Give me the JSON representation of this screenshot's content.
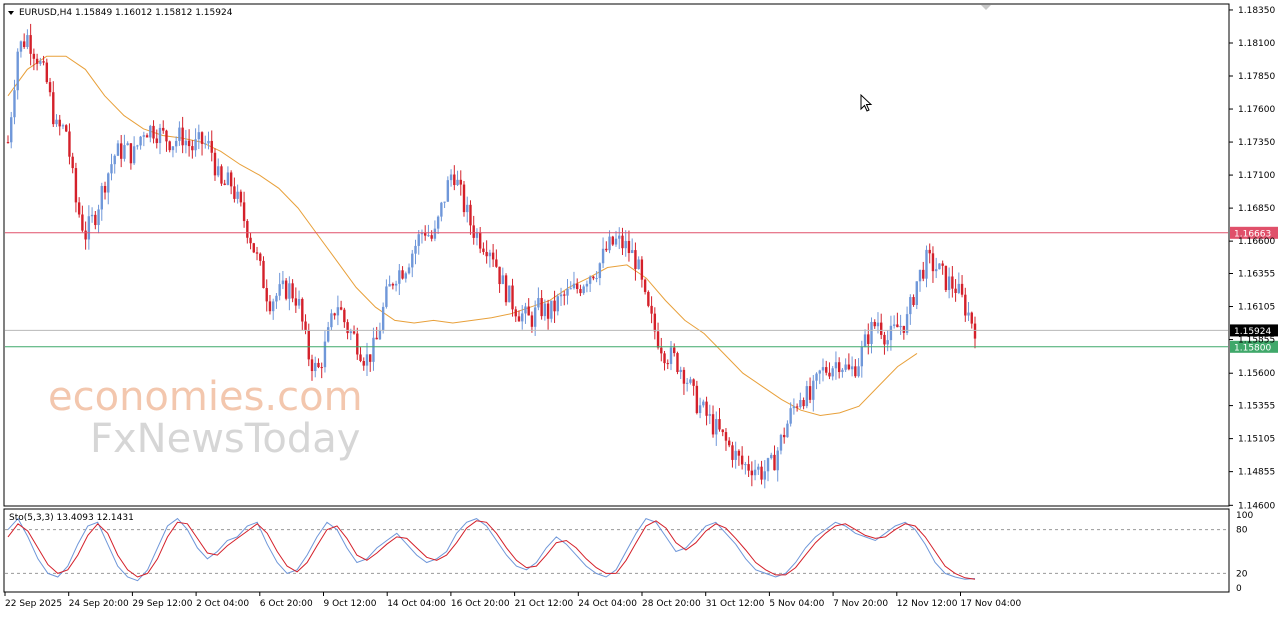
{
  "header": {
    "symbol_line": "EURUSD,H4  1.15849 1.16012 1.15812 1.15924",
    "stoch_line": "Sto(5,3,3) 13.4093 12.1431"
  },
  "watermark": {
    "line1": "economies.com",
    "line2": "FxNewsToday"
  },
  "colors": {
    "bull": "#6f97d9",
    "bear": "#d4202a",
    "ma": "#e8a03a",
    "resistance": "#e0506a",
    "support": "#3fa86a",
    "stoch_main": "#6f97d9",
    "stoch_signal": "#d4202a",
    "current_tag": "#000000"
  },
  "chart_data": [
    {
      "type": "candlestick",
      "symbol": "EURUSD",
      "timeframe": "H4",
      "ylim": [
        1.1461,
        1.1838
      ],
      "y_ticks": [
        "1.18350",
        "1.18100",
        "1.17850",
        "1.17600",
        "1.17350",
        "1.17100",
        "1.16850",
        "1.16600",
        "1.16355",
        "1.16105",
        "1.15855",
        "1.15600",
        "1.15355",
        "1.15105",
        "1.14855",
        "1.14600"
      ],
      "x_tick_labels": [
        "22 Sep 2025",
        "24 Sep 20:00",
        "29 Sep 12:00",
        "2 Oct 04:00",
        "6 Oct 20:00",
        "9 Oct 12:00",
        "14 Oct 04:00",
        "16 Oct 20:00",
        "21 Oct 12:00",
        "24 Oct 04:00",
        "28 Oct 20:00",
        "31 Oct 12:00",
        "5 Nov 04:00",
        "7 Nov 20:00",
        "12 Nov 12:00",
        "17 Nov 04:00"
      ],
      "close_path": [
        [
          0,
          1.1735
        ],
        [
          5,
          1.1805
        ],
        [
          10,
          1.1815
        ],
        [
          15,
          1.18
        ],
        [
          20,
          1.178
        ],
        [
          25,
          1.1745
        ],
        [
          30,
          1.1745
        ],
        [
          35,
          1.169
        ],
        [
          40,
          1.1665
        ],
        [
          45,
          1.168
        ],
        [
          50,
          1.1705
        ],
        [
          55,
          1.1725
        ],
        [
          60,
          1.173
        ],
        [
          65,
          1.1725
        ],
        [
          70,
          1.1745
        ],
        [
          75,
          1.1745
        ],
        [
          80,
          1.174
        ],
        [
          85,
          1.1735
        ],
        [
          90,
          1.174
        ],
        [
          95,
          1.173
        ],
        [
          100,
          1.1735
        ],
        [
          105,
          1.173
        ],
        [
          110,
          1.17
        ],
        [
          115,
          1.1705
        ],
        [
          120,
          1.1685
        ],
        [
          125,
          1.1665
        ],
        [
          130,
          1.164
        ],
        [
          135,
          1.1615
        ],
        [
          140,
          1.162
        ],
        [
          145,
          1.1625
        ],
        [
          150,
          1.1615
        ],
        [
          155,
          1.1575
        ],
        [
          160,
          1.156
        ],
        [
          165,
          1.1585
        ],
        [
          170,
          1.1615
        ],
        [
          175,
          1.1595
        ],
        [
          180,
          1.1585
        ],
        [
          185,
          1.157
        ],
        [
          190,
          1.158
        ],
        [
          195,
          1.1615
        ],
        [
          200,
          1.1635
        ],
        [
          205,
          1.164
        ],
        [
          210,
          1.1655
        ],
        [
          215,
          1.167
        ],
        [
          220,
          1.166
        ],
        [
          225,
          1.169
        ],
        [
          230,
          1.1715
        ],
        [
          235,
          1.169
        ],
        [
          240,
          1.167
        ],
        [
          245,
          1.166
        ],
        [
          250,
          1.1655
        ],
        [
          255,
          1.163
        ],
        [
          260,
          1.1615
        ],
        [
          265,
          1.1605
        ],
        [
          270,
          1.16
        ],
        [
          275,
          1.161
        ],
        [
          280,
          1.1605
        ],
        [
          285,
          1.1615
        ],
        [
          290,
          1.162
        ],
        [
          295,
          1.1625
        ],
        [
          300,
          1.1635
        ],
        [
          305,
          1.164
        ],
        [
          310,
          1.1655
        ],
        [
          315,
          1.166
        ],
        [
          320,
          1.1655
        ],
        [
          325,
          1.1645
        ],
        [
          330,
          1.161
        ],
        [
          335,
          1.159
        ],
        [
          340,
          1.1575
        ],
        [
          345,
          1.157
        ],
        [
          350,
          1.156
        ],
        [
          355,
          1.154
        ],
        [
          360,
          1.153
        ],
        [
          365,
          1.152
        ],
        [
          370,
          1.151
        ],
        [
          375,
          1.15
        ],
        [
          380,
          1.149
        ],
        [
          385,
          1.149
        ],
        [
          390,
          1.1485
        ],
        [
          395,
          1.149
        ],
        [
          400,
          1.151
        ],
        [
          405,
          1.153
        ],
        [
          410,
          1.1545
        ],
        [
          415,
          1.154
        ],
        [
          420,
          1.156
        ],
        [
          425,
          1.1565
        ],
        [
          430,
          1.157
        ],
        [
          435,
          1.156
        ],
        [
          440,
          1.157
        ],
        [
          445,
          1.159
        ],
        [
          450,
          1.16
        ],
        [
          455,
          1.1585
        ],
        [
          460,
          1.1595
        ],
        [
          465,
          1.16
        ],
        [
          470,
          1.163
        ],
        [
          475,
          1.1645
        ],
        [
          480,
          1.164
        ],
        [
          485,
          1.163
        ],
        [
          490,
          1.1625
        ],
        [
          495,
          1.161
        ],
        [
          500,
          1.1595
        ]
      ],
      "moving_average": [
        [
          0,
          1.177
        ],
        [
          10,
          1.179
        ],
        [
          20,
          1.18
        ],
        [
          30,
          1.18
        ],
        [
          40,
          1.179
        ],
        [
          50,
          1.177
        ],
        [
          60,
          1.1755
        ],
        [
          70,
          1.1745
        ],
        [
          80,
          1.174
        ],
        [
          90,
          1.1738
        ],
        [
          100,
          1.1735
        ],
        [
          110,
          1.1728
        ],
        [
          120,
          1.1718
        ],
        [
          130,
          1.171
        ],
        [
          140,
          1.17
        ],
        [
          150,
          1.1685
        ],
        [
          160,
          1.1665
        ],
        [
          170,
          1.1645
        ],
        [
          180,
          1.1625
        ],
        [
          190,
          1.161
        ],
        [
          200,
          1.16
        ],
        [
          210,
          1.1598
        ],
        [
          220,
          1.16
        ],
        [
          230,
          1.1598
        ],
        [
          240,
          1.16
        ],
        [
          250,
          1.1602
        ],
        [
          260,
          1.1605
        ],
        [
          270,
          1.161
        ],
        [
          280,
          1.1615
        ],
        [
          290,
          1.1625
        ],
        [
          300,
          1.1632
        ],
        [
          310,
          1.164
        ],
        [
          320,
          1.1642
        ],
        [
          330,
          1.1632
        ],
        [
          340,
          1.1615
        ],
        [
          350,
          1.16
        ],
        [
          360,
          1.159
        ],
        [
          370,
          1.1575
        ],
        [
          380,
          1.156
        ],
        [
          390,
          1.155
        ],
        [
          400,
          1.154
        ],
        [
          410,
          1.1532
        ],
        [
          420,
          1.1528
        ],
        [
          430,
          1.153
        ],
        [
          440,
          1.1535
        ],
        [
          450,
          1.155
        ],
        [
          460,
          1.1565
        ],
        [
          470,
          1.1575
        ]
      ],
      "resistance_level": 1.16663,
      "support_level": 1.158,
      "current_price": 1.15924,
      "current_price_label": "1.15924",
      "resistance_label": "1.16663",
      "support_label": "1.15800"
    },
    {
      "type": "line",
      "indicator": "Stochastic(5,3,3)",
      "ylim": [
        0,
        100
      ],
      "y_ticks": [
        "100",
        "80",
        "20",
        "0"
      ],
      "levels": [
        80,
        20
      ],
      "series": [
        {
          "values": [
            80,
            95,
            70,
            40,
            20,
            15,
            30,
            60,
            85,
            90,
            60,
            30,
            15,
            10,
            25,
            55,
            85,
            95,
            80,
            55,
            40,
            50,
            65,
            70,
            85,
            90,
            60,
            35,
            20,
            25,
            45,
            70,
            90,
            80,
            55,
            35,
            40,
            55,
            65,
            75,
            60,
            45,
            35,
            40,
            50,
            75,
            90,
            95,
            85,
            65,
            45,
            30,
            25,
            35,
            55,
            70,
            60,
            45,
            30,
            20,
            15,
            25,
            50,
            75,
            95,
            90,
            70,
            50,
            55,
            70,
            85,
            90,
            75,
            60,
            40,
            25,
            20,
            15,
            20,
            35,
            55,
            70,
            80,
            90,
            85,
            75,
            70,
            65,
            75,
            85,
            90,
            80,
            60,
            35,
            20,
            15,
            12,
            13
          ]
        },
        {
          "values": [
            70,
            88,
            78,
            55,
            32,
            20,
            25,
            45,
            72,
            88,
            75,
            45,
            25,
            15,
            20,
            40,
            70,
            90,
            88,
            68,
            48,
            45,
            58,
            68,
            78,
            88,
            75,
            50,
            30,
            22,
            35,
            58,
            80,
            85,
            68,
            45,
            38,
            48,
            60,
            70,
            68,
            55,
            42,
            38,
            45,
            62,
            82,
            92,
            90,
            75,
            55,
            38,
            28,
            30,
            45,
            62,
            65,
            55,
            40,
            28,
            20,
            20,
            38,
            62,
            85,
            92,
            82,
            62,
            52,
            62,
            78,
            88,
            82,
            68,
            52,
            35,
            25,
            18,
            18,
            28,
            45,
            62,
            75,
            85,
            88,
            80,
            72,
            68,
            70,
            80,
            88,
            85,
            70,
            50,
            30,
            20,
            14,
            12
          ]
        }
      ]
    }
  ]
}
